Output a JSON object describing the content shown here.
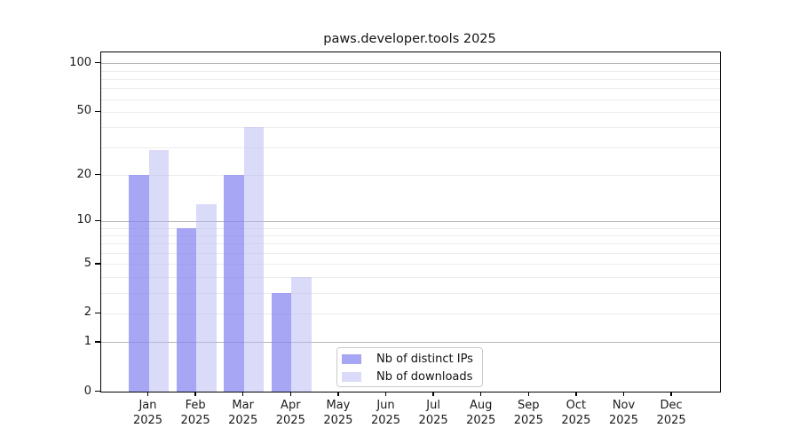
{
  "title": "paws.developer.tools 2025",
  "chart_data": {
    "type": "bar",
    "title": "paws.developer.tools 2025",
    "xlabel": "",
    "ylabel": "",
    "scale": "log1p",
    "ylim": [
      0,
      117
    ],
    "grid": true,
    "legend_position": "inside-bottom-center",
    "year": "2025",
    "categories": [
      "Jan",
      "Feb",
      "Mar",
      "Apr",
      "May",
      "Jun",
      "Jul",
      "Aug",
      "Sep",
      "Oct",
      "Nov",
      "Dec"
    ],
    "series": [
      {
        "key": "distinct-ips",
        "name": "Nb of distinct IPs",
        "color": "#a6a6f4",
        "rgba": "rgba(132,132,240,0.72)",
        "values": [
          20,
          9,
          20,
          3,
          0,
          0,
          0,
          0,
          0,
          0,
          0,
          0
        ]
      },
      {
        "key": "downloads",
        "name": "Nb of downloads",
        "color": "#dbdbf9",
        "rgba": "rgba(185,185,243,0.52)",
        "values": [
          29,
          13,
          40,
          4,
          0,
          0,
          0,
          0,
          0,
          0,
          0,
          0
        ]
      }
    ],
    "y_ticks": [
      0,
      1,
      2,
      5,
      10,
      20,
      50,
      100
    ],
    "minor_gridlines": [
      2,
      3,
      4,
      5,
      6,
      7,
      8,
      9,
      20,
      30,
      40,
      50,
      60,
      70,
      80,
      90
    ],
    "major_gridlines": [
      1,
      10,
      100
    ]
  },
  "legend": {
    "items": [
      {
        "label": "Nb of distinct IPs"
      },
      {
        "label": "Nb of downloads"
      }
    ]
  }
}
